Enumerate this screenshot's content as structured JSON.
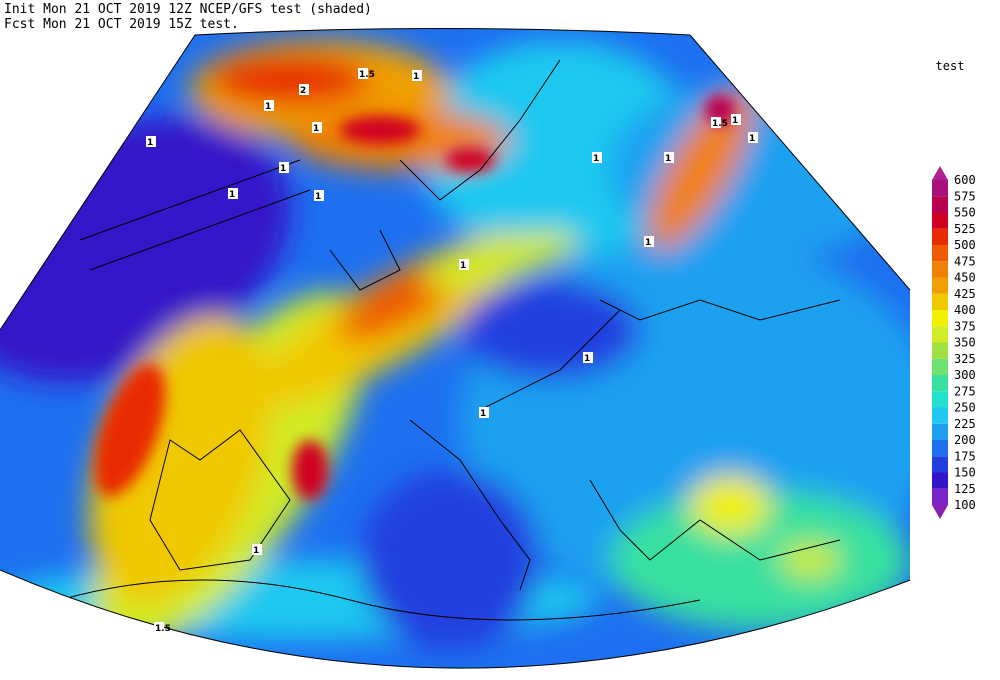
{
  "header": {
    "line1": "Init  Mon 21 OCT 2019 12Z  NCEP/GFS test (shaded)",
    "line2": "Fcst Mon 21 OCT 2019 15Z  test."
  },
  "colorbar": {
    "title": "test",
    "levels": [
      100,
      125,
      150,
      175,
      200,
      225,
      250,
      275,
      300,
      325,
      350,
      375,
      400,
      425,
      450,
      475,
      500,
      525,
      550,
      575,
      600
    ],
    "under_color": "#8a1fb4",
    "colors": [
      "#7a24c8",
      "#3414c8",
      "#2040e0",
      "#1e70f0",
      "#1ea0f0",
      "#1ec8f0",
      "#20e0d0",
      "#38e0a0",
      "#6ee070",
      "#a0e040",
      "#d2ec28",
      "#f0f000",
      "#f0c800",
      "#f0a000",
      "#f08000",
      "#f05a00",
      "#e82c00",
      "#d00020",
      "#b80050",
      "#a8107a"
    ],
    "over_color": "#b02090"
  },
  "contour_labels": [
    "2",
    "1.5",
    "1",
    "1",
    "1",
    "1",
    "1",
    "1.5",
    "1",
    "1",
    "1",
    "1",
    "1",
    "1",
    "1",
    "1",
    "1",
    "1",
    "1",
    "1.5"
  ]
}
